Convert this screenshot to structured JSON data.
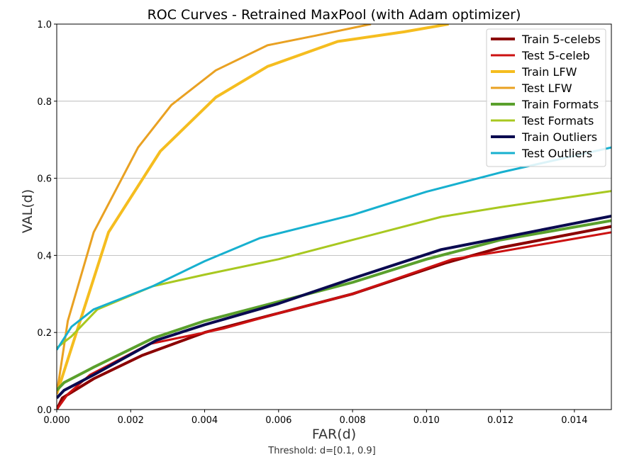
{
  "chart_data": {
    "type": "line",
    "title": "ROC Curves - Retrained MaxPool (with Adam optimizer)",
    "xlabel": "FAR(d)",
    "ylabel": "VAL(d)",
    "xlim": [
      0,
      0.015
    ],
    "ylim": [
      0,
      1.0
    ],
    "x_ticks": [
      "0.000",
      "0.002",
      "0.004",
      "0.006",
      "0.008",
      "0.010",
      "0.012",
      "0.014"
    ],
    "y_ticks": [
      "0.0",
      "0.2",
      "0.4",
      "0.6",
      "0.8",
      "1.0"
    ],
    "grid": "horizontal",
    "legend_position": "top-right",
    "series": [
      {
        "name": "Train 5-celebs",
        "color": "#8b0000",
        "width": 4,
        "points": [
          [
            0,
            0
          ],
          [
            0.00015,
            0.03
          ],
          [
            0.001,
            0.08
          ],
          [
            0.0023,
            0.14
          ],
          [
            0.004,
            0.2
          ],
          [
            0.006,
            0.25
          ],
          [
            0.008,
            0.3
          ],
          [
            0.0105,
            0.38
          ],
          [
            0.012,
            0.42
          ],
          [
            0.015,
            0.475
          ]
        ]
      },
      {
        "name": "Test 5-celeb",
        "color": "#cc1111",
        "width": 3,
        "points": [
          [
            0,
            0
          ],
          [
            0.0003,
            0.04
          ],
          [
            0.0009,
            0.09
          ],
          [
            0.0025,
            0.17
          ],
          [
            0.0045,
            0.21
          ],
          [
            0.006,
            0.25
          ],
          [
            0.008,
            0.3
          ],
          [
            0.0107,
            0.39
          ],
          [
            0.012,
            0.41
          ],
          [
            0.015,
            0.46
          ]
        ]
      },
      {
        "name": "Train LFW",
        "color": "#f5bd1f",
        "width": 4,
        "points": [
          [
            0,
            0.04
          ],
          [
            0.0007,
            0.25
          ],
          [
            0.0014,
            0.46
          ],
          [
            0.0028,
            0.67
          ],
          [
            0.0043,
            0.81
          ],
          [
            0.0057,
            0.89
          ],
          [
            0.0076,
            0.955
          ],
          [
            0.0094,
            0.98
          ],
          [
            0.0106,
            1.0
          ]
        ]
      },
      {
        "name": "Test LFW",
        "color": "#e9a122",
        "width": 3,
        "points": [
          [
            0,
            0.04
          ],
          [
            0.0003,
            0.23
          ],
          [
            0.001,
            0.46
          ],
          [
            0.0022,
            0.68
          ],
          [
            0.0031,
            0.79
          ],
          [
            0.0043,
            0.88
          ],
          [
            0.0057,
            0.945
          ],
          [
            0.007,
            0.97
          ],
          [
            0.0085,
            1.0
          ]
        ]
      },
      {
        "name": "Train Formats",
        "color": "#5aa02c",
        "width": 4,
        "points": [
          [
            0,
            0.05
          ],
          [
            0.0002,
            0.07
          ],
          [
            0.001,
            0.11
          ],
          [
            0.0026,
            0.185
          ],
          [
            0.004,
            0.23
          ],
          [
            0.006,
            0.28
          ],
          [
            0.008,
            0.33
          ],
          [
            0.01,
            0.39
          ],
          [
            0.012,
            0.44
          ],
          [
            0.015,
            0.49
          ]
        ]
      },
      {
        "name": "Test Formats",
        "color": "#a8c820",
        "width": 3,
        "points": [
          [
            0,
            0.16
          ],
          [
            0.0004,
            0.19
          ],
          [
            0.0011,
            0.26
          ],
          [
            0.0026,
            0.32
          ],
          [
            0.004,
            0.35
          ],
          [
            0.006,
            0.39
          ],
          [
            0.008,
            0.44
          ],
          [
            0.0104,
            0.5
          ],
          [
            0.012,
            0.525
          ],
          [
            0.015,
            0.567
          ]
        ]
      },
      {
        "name": "Train Outliers",
        "color": "#0a0a50",
        "width": 4,
        "points": [
          [
            0,
            0.03
          ],
          [
            0.0002,
            0.05
          ],
          [
            0.001,
            0.09
          ],
          [
            0.0027,
            0.18
          ],
          [
            0.004,
            0.22
          ],
          [
            0.006,
            0.275
          ],
          [
            0.008,
            0.34
          ],
          [
            0.0104,
            0.415
          ],
          [
            0.012,
            0.445
          ],
          [
            0.015,
            0.502
          ]
        ]
      },
      {
        "name": "Test Outliers",
        "color": "#17b0cf",
        "width": 3,
        "points": [
          [
            0,
            0.155
          ],
          [
            0.0004,
            0.215
          ],
          [
            0.001,
            0.26
          ],
          [
            0.0026,
            0.32
          ],
          [
            0.004,
            0.385
          ],
          [
            0.0055,
            0.445
          ],
          [
            0.008,
            0.505
          ],
          [
            0.01,
            0.565
          ],
          [
            0.012,
            0.615
          ],
          [
            0.015,
            0.68
          ]
        ]
      }
    ]
  },
  "caption": "Threshold: d=[0.1, 0.9]"
}
